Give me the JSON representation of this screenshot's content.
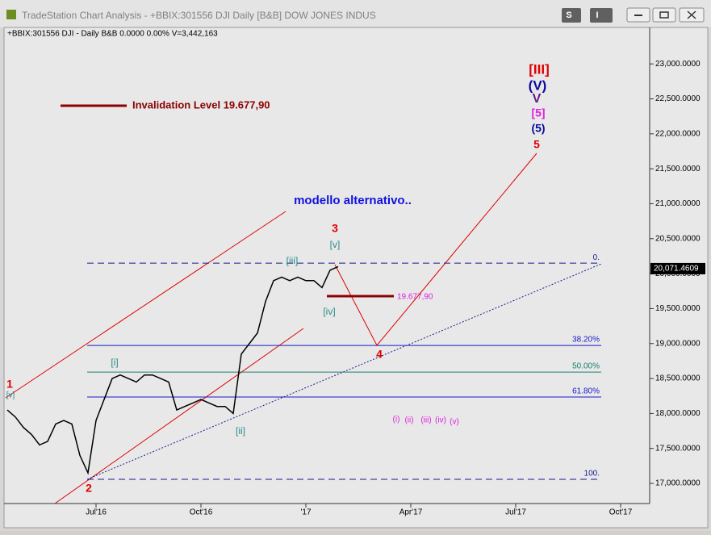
{
  "window": {
    "title": "TradeStation Chart Analysis - +BBIX:301556 DJI Daily [B&B] DOW JONES INDUS",
    "buttons": [
      "S",
      "I"
    ]
  },
  "chart_data": {
    "type": "line",
    "info": "+BBIX:301556 DJI - Daily  B&B  0.0000  0.00%  V=3,442,163",
    "color": "#000000",
    "categories": [
      null,
      null,
      null,
      null,
      null,
      null,
      null,
      null,
      null,
      null,
      null,
      "Jul'16",
      null,
      null,
      null,
      null,
      null,
      null,
      null,
      null,
      null,
      null,
      null,
      null,
      "Oct'16",
      null,
      null,
      null,
      null,
      null,
      null,
      null,
      null,
      null,
      null,
      null,
      null,
      "'17",
      null,
      null,
      null,
      null,
      null,
      null,
      null,
      null,
      null,
      null,
      null,
      null,
      "Apr'17",
      null,
      null,
      null,
      null,
      null,
      null,
      null,
      null,
      null,
      null,
      null,
      null,
      "Jul'17",
      null,
      null,
      null,
      null,
      null,
      null,
      null,
      null,
      null,
      null,
      null,
      null,
      "Oct'17",
      null,
      null,
      null
    ],
    "values": [
      18050,
      17950,
      17800,
      17700,
      17550,
      17600,
      17850,
      17900,
      17850,
      17400,
      17150,
      17900,
      18200,
      18500,
      18550,
      18500,
      18450,
      18550,
      18550,
      18500,
      18450,
      18050,
      18100,
      18150,
      18200,
      18150,
      18100,
      18100,
      18000,
      18850,
      19000,
      19150,
      19600,
      19900,
      19950,
      19900,
      19950,
      19900,
      19900,
      19800,
      20050,
      20100,
      null,
      null,
      null,
      null,
      null,
      null,
      null,
      null,
      null,
      null,
      null,
      null,
      null,
      null,
      null,
      null,
      null,
      null,
      null,
      null,
      null,
      null,
      null,
      null,
      null,
      null,
      null,
      null,
      null,
      null,
      null,
      null,
      null,
      null,
      null,
      null,
      null,
      null
    ],
    "ylim": [
      16735,
      23510
    ],
    "yticks": [
      {
        "value": 17000,
        "label": "17,000.0000"
      },
      {
        "value": 17500,
        "label": "17,500.0000"
      },
      {
        "value": 18000,
        "label": "18,000.0000"
      },
      {
        "value": 18500,
        "label": "18,500.0000"
      },
      {
        "value": 19000,
        "label": "19,000.0000"
      },
      {
        "value": 19500,
        "label": "19,500.0000"
      },
      {
        "value": 20000,
        "label": "20,000.0000"
      },
      {
        "value": 20500,
        "label": "20,500.0000"
      },
      {
        "value": 21000,
        "label": "21,000.0000"
      },
      {
        "value": 21500,
        "label": "21,500.0000"
      },
      {
        "value": 22000,
        "label": "22,000.0000"
      },
      {
        "value": 22500,
        "label": "22,500.0000"
      },
      {
        "value": 23000,
        "label": "23,000.0000"
      }
    ],
    "last_price": {
      "value": 20071.4609,
      "label": "20,071.4609"
    },
    "fib_levels": [
      {
        "label": "0.",
        "value": 20150,
        "color": "#1a1a8c",
        "dashed": true
      },
      {
        "label": "38.20%",
        "value": 18973,
        "color": "#1a1acc",
        "dashed": false
      },
      {
        "label": "50.00%",
        "value": 18592,
        "color": "#1a8070",
        "dashed": false
      },
      {
        "label": "61.80%",
        "value": 18235,
        "color": "#1a1acc",
        "dashed": false
      },
      {
        "label": "100.",
        "value": 17058,
        "color": "#1a1a8c",
        "dashed": true
      }
    ],
    "invalidation": {
      "value": 19677.9,
      "label": "19.677,90",
      "color": "#8b0000"
    },
    "annotations": [
      "1",
      "[v]",
      "2",
      "[i]",
      "[ii]",
      "[iii]",
      "3",
      "[v]",
      "[iv]",
      "4",
      "5",
      "(5)",
      "[5]",
      "V",
      "(V)",
      "[III]",
      "(i)",
      "(ii)",
      "(iii)",
      "(iv)",
      "(v)",
      "modello alternativo..",
      "Invalidation Level 19.677,90"
    ]
  }
}
